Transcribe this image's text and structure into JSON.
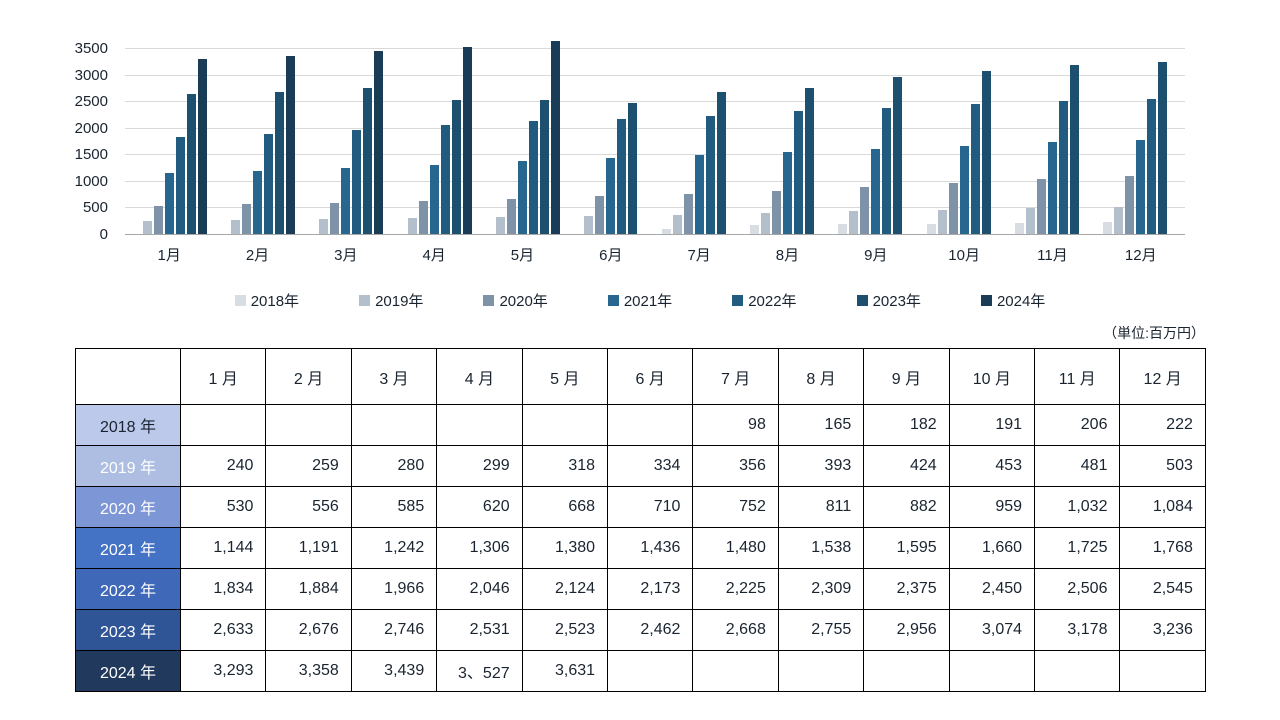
{
  "unit_label": "（単位:百万円）",
  "chart_data": {
    "type": "bar",
    "title": "",
    "xlabel": "",
    "ylabel": "",
    "categories": [
      "1月",
      "2月",
      "3月",
      "4月",
      "5月",
      "6月",
      "7月",
      "8月",
      "9月",
      "10月",
      "11月",
      "12月"
    ],
    "series": [
      {
        "name": "2018年",
        "color": "#d8dde3",
        "values": [
          null,
          null,
          null,
          null,
          null,
          null,
          98,
          165,
          182,
          191,
          206,
          222
        ]
      },
      {
        "name": "2019年",
        "color": "#b3bfcb",
        "values": [
          240,
          259,
          280,
          299,
          318,
          334,
          356,
          393,
          424,
          453,
          481,
          503
        ]
      },
      {
        "name": "2020年",
        "color": "#7e93a8",
        "values": [
          530,
          556,
          585,
          620,
          668,
          710,
          752,
          811,
          882,
          959,
          1032,
          1084
        ]
      },
      {
        "name": "2021年",
        "color": "#27678f",
        "values": [
          1144,
          1191,
          1242,
          1306,
          1380,
          1436,
          1480,
          1538,
          1595,
          1660,
          1725,
          1768
        ]
      },
      {
        "name": "2022年",
        "color": "#215c80",
        "values": [
          1834,
          1884,
          1966,
          2046,
          2124,
          2173,
          2225,
          2309,
          2375,
          2450,
          2506,
          2545
        ]
      },
      {
        "name": "2023年",
        "color": "#1d4f6e",
        "values": [
          2633,
          2676,
          2746,
          2531,
          2523,
          2462,
          2668,
          2755,
          2956,
          3074,
          3178,
          3236
        ]
      },
      {
        "name": "2024年",
        "color": "#1a3c56",
        "values": [
          3293,
          3358,
          3439,
          3527,
          3631,
          null,
          null,
          null,
          null,
          null,
          null,
          null
        ]
      }
    ],
    "ylim": [
      0,
      3500
    ],
    "yticks": [
      0,
      500,
      1000,
      1500,
      2000,
      2500,
      3000,
      3500
    ],
    "grid": true,
    "legend_position": "bottom"
  },
  "table": {
    "corner_label": "",
    "columns": [
      "1 月",
      "2 月",
      "3 月",
      "4 月",
      "5 月",
      "6 月",
      "7 月",
      "8 月",
      "9 月",
      "10 月",
      "11 月",
      "12 月"
    ],
    "rows": [
      {
        "label": "2018 年",
        "bg": "#bcc9eb",
        "text_color": "#1a2430",
        "cells": [
          "",
          "",
          "",
          "",
          "",
          "",
          "98",
          "165",
          "182",
          "191",
          "206",
          "222"
        ]
      },
      {
        "label": "2019 年",
        "bg": "#aebee3",
        "text_color": "#ffffff",
        "cells": [
          "240",
          "259",
          "280",
          "299",
          "318",
          "334",
          "356",
          "393",
          "424",
          "453",
          "481",
          "503"
        ]
      },
      {
        "label": "2020 年",
        "bg": "#7c96d6",
        "text_color": "#ffffff",
        "cells": [
          "530",
          "556",
          "585",
          "620",
          "668",
          "710",
          "752",
          "811",
          "882",
          "959",
          "1,032",
          "1,084"
        ]
      },
      {
        "label": "2021 年",
        "bg": "#4472c4",
        "text_color": "#ffffff",
        "cells": [
          "1,144",
          "1,191",
          "1,242",
          "1,306",
          "1,380",
          "1,436",
          "1,480",
          "1,538",
          "1,595",
          "1,660",
          "1,725",
          "1,768"
        ]
      },
      {
        "label": "2022 年",
        "bg": "#3f69b8",
        "text_color": "#ffffff",
        "cells": [
          "1,834",
          "1,884",
          "1,966",
          "2,046",
          "2,124",
          "2,173",
          "2,225",
          "2,309",
          "2,375",
          "2,450",
          "2,506",
          "2,545"
        ]
      },
      {
        "label": "2023 年",
        "bg": "#2f5597",
        "text_color": "#ffffff",
        "cells": [
          "2,633",
          "2,676",
          "2,746",
          "2,531",
          "2,523",
          "2,462",
          "2,668",
          "2,755",
          "2,956",
          "3,074",
          "3,178",
          "3,236"
        ]
      },
      {
        "label": "2024 年",
        "bg": "#20395c",
        "text_color": "#ffffff",
        "cells": [
          "3,293",
          "3,358",
          "3,439",
          "3、527",
          "3,631",
          "",
          "",
          "",
          "",
          "",
          "",
          ""
        ]
      }
    ]
  }
}
